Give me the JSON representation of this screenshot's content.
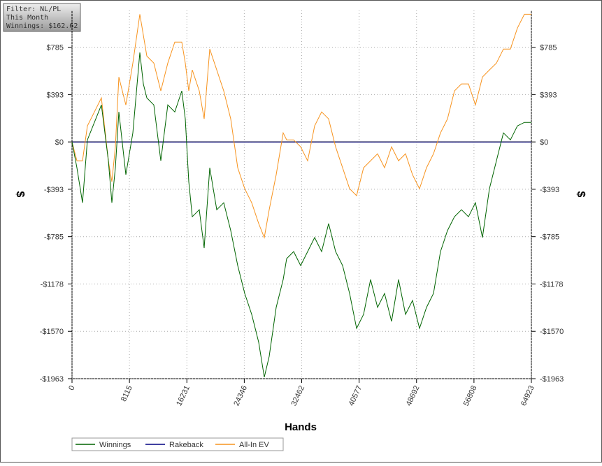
{
  "chart_data": {
    "type": "line",
    "annotations": [
      "Filter: NL/PL",
      "This Month",
      "Winnings: $162.62"
    ],
    "x_label": "Hands",
    "y_label": "$",
    "y2_label": "$",
    "x": [
      0,
      692,
      1482,
      2174,
      3162,
      4150,
      5139,
      5633,
      6127,
      6621,
      7609,
      8597,
      9585,
      10080,
      10574,
      11562,
      12550,
      13538,
      14527,
      15515,
      16009,
      16503,
      16997,
      17985,
      18677,
      19468,
      20456,
      21444,
      22432,
      23420,
      24408,
      25396,
      26385,
      27175,
      27867,
      28855,
      29843,
      30337,
      31325,
      32313,
      33301,
      34289,
      35279,
      36267,
      37255,
      38243,
      39231,
      40219,
      41208,
      42196,
      43184,
      44172,
      45161,
      46149,
      47137,
      48125,
      49113,
      50102,
      51090,
      52078,
      53066,
      54054,
      55042,
      56030,
      57018,
      58007,
      58995,
      59983,
      60971,
      61959,
      62947,
      63936,
      64923
    ],
    "series": [
      {
        "name": "Winnings",
        "color": "#006400",
        "values": [
          0,
          -214,
          -504,
          17,
          162,
          307,
          -156,
          -504,
          -214,
          249,
          -272,
          75,
          741,
          481,
          365,
          307,
          -156,
          307,
          249,
          423,
          191,
          -330,
          -620,
          -562,
          -880,
          -214,
          -562,
          -504,
          -735,
          -1025,
          -1256,
          -1430,
          -1662,
          -1951,
          -1778,
          -1372,
          -1141,
          -967,
          -909,
          -1025,
          -909,
          -793,
          -909,
          -677,
          -909,
          -1025,
          -1256,
          -1546,
          -1430,
          -1141,
          -1372,
          -1256,
          -1488,
          -1141,
          -1430,
          -1314,
          -1546,
          -1372,
          -1256,
          -909,
          -735,
          -620,
          -562,
          -620,
          -504,
          -793,
          -388,
          -156,
          75,
          17,
          133,
          162,
          162
        ]
      },
      {
        "name": "Rakeback",
        "color": "#000080",
        "values": [
          0,
          0,
          0,
          0,
          0,
          0,
          0,
          0,
          0,
          0,
          0,
          0,
          0,
          0,
          0,
          0,
          0,
          0,
          0,
          0,
          0,
          0,
          0,
          0,
          0,
          0,
          0,
          0,
          0,
          0,
          0,
          0,
          0,
          0,
          0,
          0,
          0,
          0,
          0,
          0,
          0,
          0,
          0,
          0,
          0,
          0,
          0,
          0,
          0,
          0,
          0,
          0,
          0,
          0,
          0,
          0,
          0,
          0,
          0,
          0,
          0,
          0,
          0,
          0,
          0,
          0,
          0,
          0,
          0,
          0,
          0,
          0,
          0
        ]
      },
      {
        "name": "All-In EV",
        "color": "#f7931e",
        "values": [
          0,
          -156,
          -156,
          133,
          249,
          365,
          -156,
          -330,
          -41,
          538,
          307,
          654,
          1059,
          886,
          712,
          654,
          423,
          654,
          828,
          828,
          654,
          423,
          597,
          423,
          191,
          770,
          597,
          423,
          191,
          -214,
          -388,
          -504,
          -677,
          -793,
          -562,
          -272,
          75,
          17,
          17,
          -41,
          -156,
          133,
          249,
          191,
          -41,
          -214,
          -388,
          -446,
          -214,
          -156,
          -98,
          -214,
          -41,
          -156,
          -98,
          -272,
          -388,
          -214,
          -98,
          75,
          191,
          423,
          481,
          481,
          307,
          538,
          597,
          654,
          770,
          770,
          944,
          1059,
          1059
        ]
      }
    ],
    "xlim": [
      0,
      64923
    ],
    "xticks": [
      0,
      8115,
      16231,
      24346,
      32462,
      40577,
      48692,
      56808,
      64923
    ],
    "ylim": [
      -1963,
      1090
    ],
    "yticks": [
      {
        "value": 785.2,
        "label": "$785"
      },
      {
        "value": 392.6,
        "label": "$393"
      },
      {
        "value": 0,
        "label": "$0"
      },
      {
        "value": -392.6,
        "label": "-$393"
      },
      {
        "value": -785.2,
        "label": "-$785"
      },
      {
        "value": -1177.8,
        "label": "-$1178"
      },
      {
        "value": -1570.4,
        "label": "-$1570"
      },
      {
        "value": -1963,
        "label": "-$1963"
      }
    ],
    "grid": true,
    "legend": "bottom"
  }
}
